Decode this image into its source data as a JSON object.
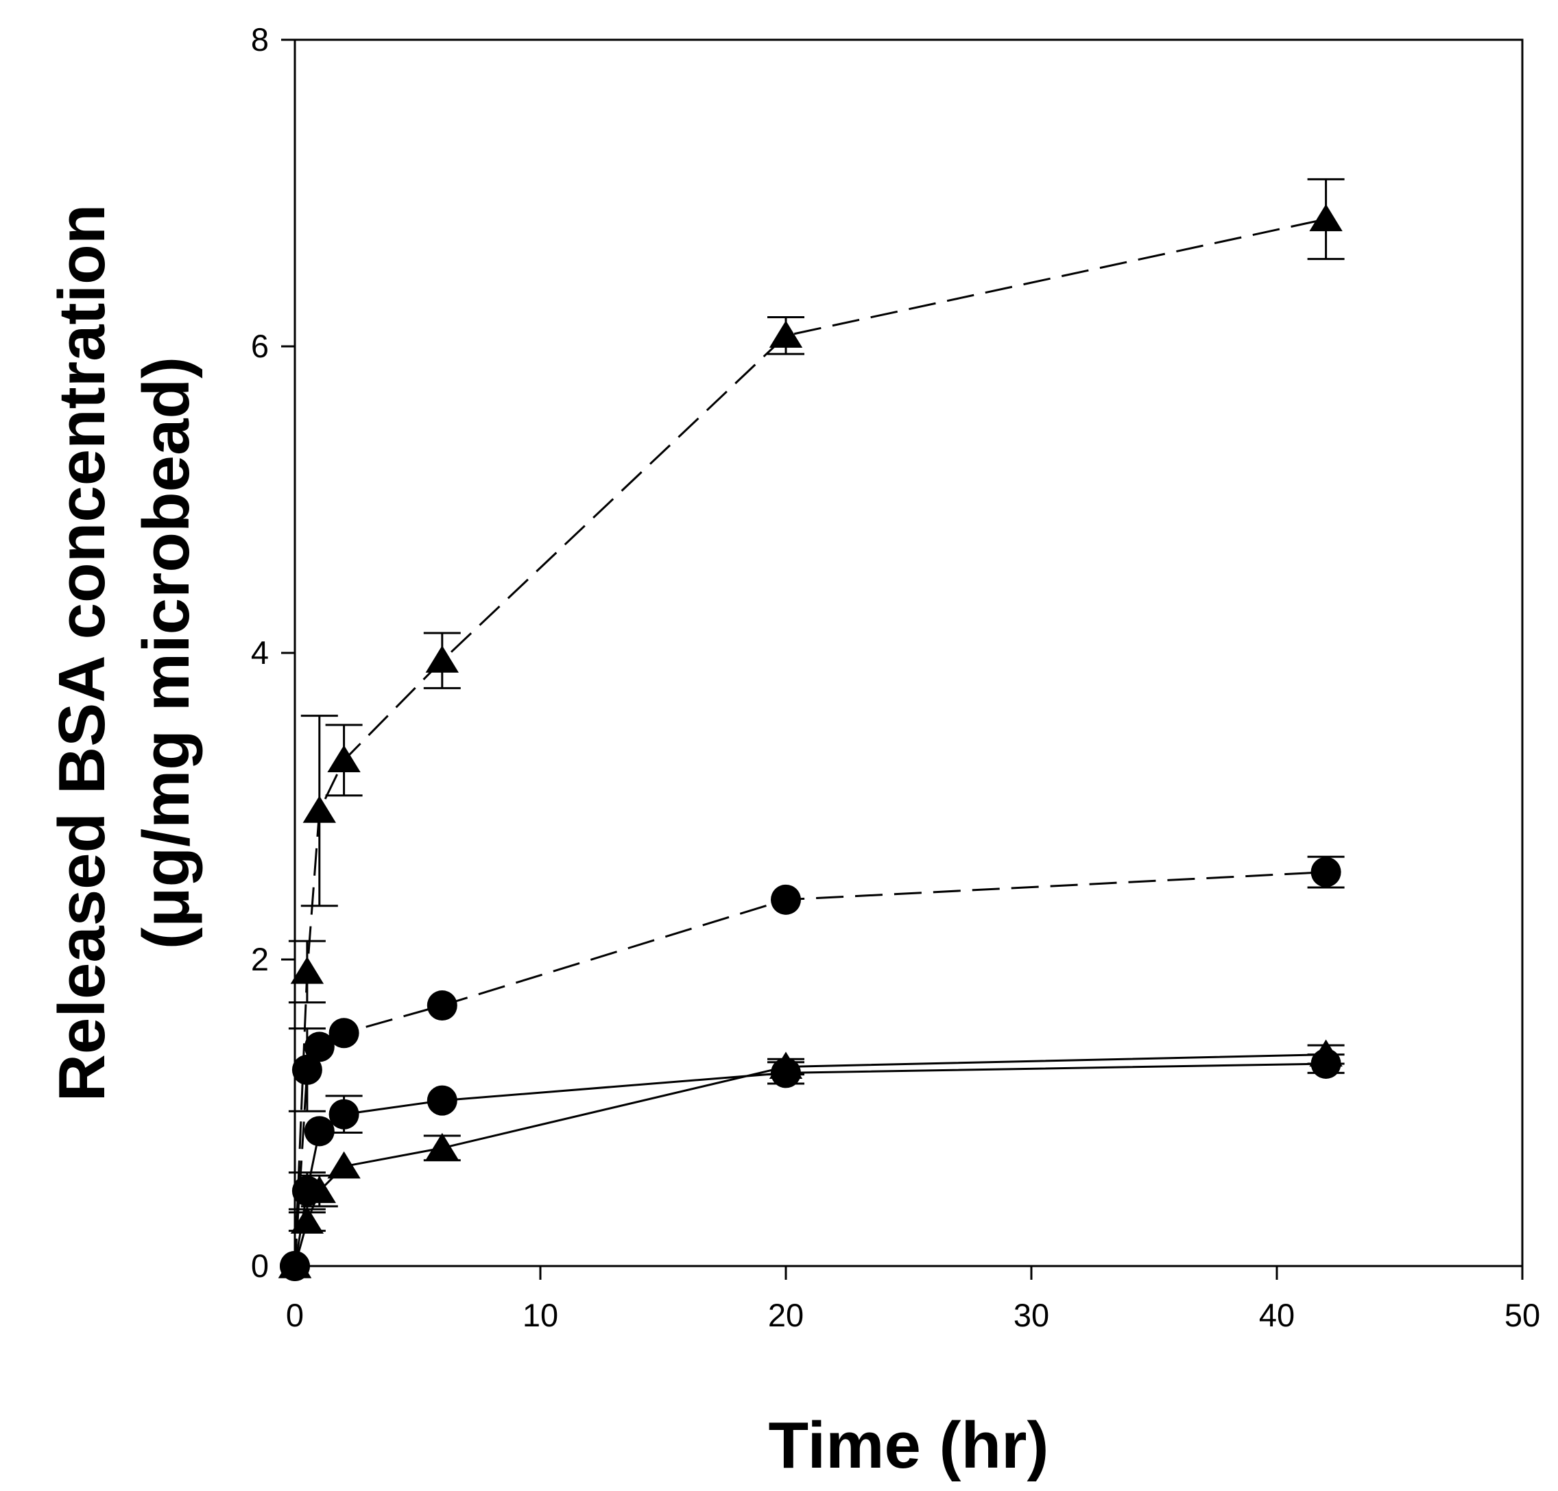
{
  "chart_data": {
    "type": "line",
    "title": "",
    "xlabel": "Time (hr)",
    "ylabel_line1": "Released BSA concentration",
    "ylabel_line2": "(μg/mg microbead)",
    "xlim": [
      0,
      50
    ],
    "ylim": [
      0,
      8
    ],
    "xticks": [
      0,
      10,
      20,
      30,
      40,
      50
    ],
    "yticks": [
      0,
      2,
      4,
      6,
      8
    ],
    "grid": false,
    "legend": "none",
    "series": [
      {
        "name": "triangle-dashed",
        "marker": "triangle",
        "line": "dashed",
        "x": [
          0,
          0.5,
          1,
          2,
          6,
          20,
          42
        ],
        "y": [
          0,
          1.92,
          2.97,
          3.3,
          3.95,
          6.07,
          6.83
        ],
        "err": [
          0,
          0.2,
          0.62,
          0.23,
          0.18,
          0.12,
          0.26
        ]
      },
      {
        "name": "circle-dashed",
        "marker": "circle",
        "line": "dashed",
        "x": [
          0,
          0.5,
          1,
          2,
          6,
          20,
          42
        ],
        "y": [
          0,
          1.28,
          1.43,
          1.52,
          1.7,
          2.39,
          2.57
        ],
        "err": [
          0,
          0.27,
          0,
          0,
          0,
          0,
          0.1
        ]
      },
      {
        "name": "circle-solid",
        "marker": "circle",
        "line": "solid",
        "x": [
          0,
          0.5,
          1,
          2,
          6,
          20,
          42
        ],
        "y": [
          0,
          0.49,
          0.88,
          0.99,
          1.08,
          1.26,
          1.32
        ],
        "err": [
          0,
          0.12,
          0,
          0.12,
          0,
          0.07,
          0.06
        ]
      },
      {
        "name": "triangle-solid",
        "marker": "triangle",
        "line": "solid",
        "x": [
          0,
          0.5,
          1,
          2,
          6,
          20,
          42
        ],
        "y": [
          0,
          0.29,
          0.49,
          0.65,
          0.77,
          1.3,
          1.38
        ],
        "err": [
          0,
          0.06,
          0.1,
          0,
          0.08,
          0.05,
          0.06
        ]
      }
    ]
  }
}
